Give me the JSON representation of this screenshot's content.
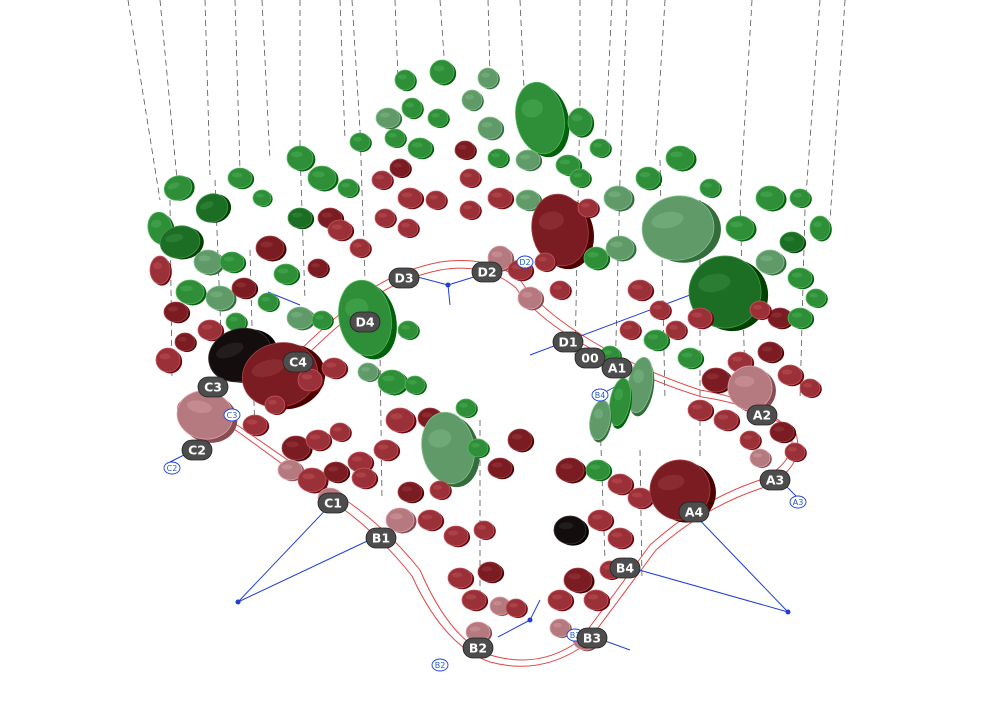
{
  "model": {
    "tags": [
      {
        "id": "A1",
        "label": "A1"
      },
      {
        "id": "A2",
        "label": "A2"
      },
      {
        "id": "A3",
        "label": "A3"
      },
      {
        "id": "A4",
        "label": "A4"
      },
      {
        "id": "B1",
        "label": "B1"
      },
      {
        "id": "B2",
        "label": "B2"
      },
      {
        "id": "B3",
        "label": "B3"
      },
      {
        "id": "B4",
        "label": "B4"
      },
      {
        "id": "C1",
        "label": "C1"
      },
      {
        "id": "C2",
        "label": "C2"
      },
      {
        "id": "C3",
        "label": "C3"
      },
      {
        "id": "C4",
        "label": "C4"
      },
      {
        "id": "D1",
        "label": "D1"
      },
      {
        "id": "D2",
        "label": "D2"
      },
      {
        "id": "D3",
        "label": "D3"
      },
      {
        "id": "D4",
        "label": "D4"
      },
      {
        "id": "00",
        "label": "00"
      }
    ],
    "grid_labels": [
      "B2",
      "B3",
      "C2",
      "C3",
      "B4",
      "A3",
      "D2"
    ],
    "colors": {
      "green_dark": "#1c6e25",
      "green_mid": "#2f8f38",
      "green_light": "#5f9a68",
      "red_dark": "#7a1c22",
      "red_mid": "#9b3138",
      "pink": "#b57a80",
      "black_panel": "#140d0d",
      "grid_blue": "#1f3fd8",
      "curve_red": "#e04848",
      "tag_fill": "#4d4d4d"
    }
  }
}
